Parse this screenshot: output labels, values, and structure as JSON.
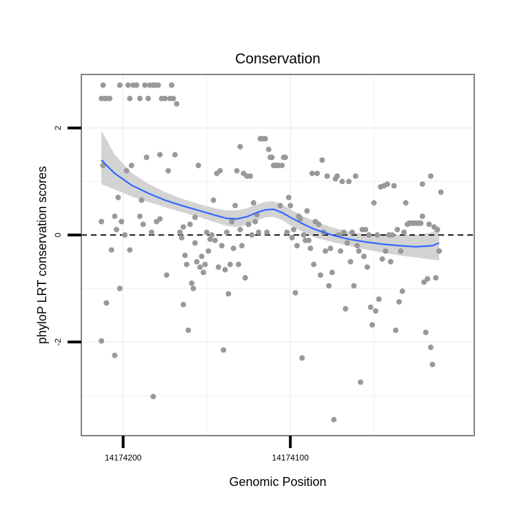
{
  "chart_data": {
    "type": "scatter",
    "title": "Conservation",
    "xlabel": "Genomic Position",
    "ylabel": "phyloP LRT conservation scores",
    "x_axis_reversed": true,
    "xlim": [
      14174225,
      14173990
    ],
    "ylim": [
      -3.75,
      3.0
    ],
    "x_ticks": [
      14174200,
      14174100
    ],
    "x_tick_labels": [
      "14174200",
      "14174100"
    ],
    "y_ticks": [
      -2,
      0,
      2
    ],
    "y_tick_labels": [
      "-2",
      "0",
      "2"
    ],
    "grid": true,
    "reference_line": {
      "y": 0,
      "style": "dashed",
      "color": "#000000"
    },
    "colors": {
      "points": "#999999",
      "smooth": "#3366FF",
      "ribbon": "#D3D3D3",
      "grid": "#F2F2F2",
      "panel_border": "#808080"
    },
    "points": [
      [
        14174212,
        2.8
      ],
      [
        14174213,
        2.55
      ],
      [
        14174212,
        1.3
      ],
      [
        14174213,
        0.25
      ],
      [
        14174213,
        -1.98
      ],
      [
        14174211,
        2.55
      ],
      [
        14174210,
        2.55
      ],
      [
        14174210,
        -1.27
      ],
      [
        14174207,
        -0.28
      ],
      [
        14174208,
        2.55
      ],
      [
        14174205,
        0.35
      ],
      [
        14174204,
        0.1
      ],
      [
        14174205,
        -2.25
      ],
      [
        14174202,
        2.8
      ],
      [
        14174203,
        0.7
      ],
      [
        14174202,
        -1.0
      ],
      [
        14174201,
        0.25
      ],
      [
        14174199,
        0.0
      ],
      [
        14174198,
        1.2
      ],
      [
        14174197,
        2.8
      ],
      [
        14174196,
        2.55
      ],
      [
        14174196,
        -0.28
      ],
      [
        14174195,
        1.3
      ],
      [
        14174194,
        2.8
      ],
      [
        14174192,
        2.8
      ],
      [
        14174190,
        2.55
      ],
      [
        14174190,
        0.35
      ],
      [
        14174189,
        0.65
      ],
      [
        14174188,
        0.2
      ],
      [
        14174187,
        2.8
      ],
      [
        14174186,
        1.45
      ],
      [
        14174185,
        2.55
      ],
      [
        14174184,
        2.8
      ],
      [
        14174183,
        0.05
      ],
      [
        14174182,
        2.8
      ],
      [
        14174182,
        -3.02
      ],
      [
        14174181,
        2.8
      ],
      [
        14174180,
        0.25
      ],
      [
        14174179,
        2.8
      ],
      [
        14174178,
        0.3
      ],
      [
        14174178,
        1.5
      ],
      [
        14174177,
        2.55
      ],
      [
        14174175,
        2.55
      ],
      [
        14174174,
        -0.75
      ],
      [
        14174173,
        1.2
      ],
      [
        14174172,
        2.55
      ],
      [
        14174171,
        2.8
      ],
      [
        14174170,
        2.55
      ],
      [
        14174169,
        1.5
      ],
      [
        14174168,
        2.45
      ],
      [
        14174166,
        0.05
      ],
      [
        14174165,
        -0.05
      ],
      [
        14174164,
        -1.3
      ],
      [
        14174164,
        0.15
      ],
      [
        14174163,
        -0.38
      ],
      [
        14174162,
        -0.55
      ],
      [
        14174161,
        -1.78
      ],
      [
        14174160,
        0.2
      ],
      [
        14174159,
        -0.9
      ],
      [
        14174158,
        -1.0
      ],
      [
        14174157,
        -0.15
      ],
      [
        14174157,
        0.33
      ],
      [
        14174156,
        -0.5
      ],
      [
        14174155,
        1.3
      ],
      [
        14174154,
        -0.6
      ],
      [
        14174153,
        -0.4
      ],
      [
        14174152,
        -0.7
      ],
      [
        14174151,
        -0.55
      ],
      [
        14174150,
        0.05
      ],
      [
        14174149,
        -0.3
      ],
      [
        14174148,
        -0.08
      ],
      [
        14174147,
        0.0
      ],
      [
        14174146,
        0.65
      ],
      [
        14174145,
        -0.1
      ],
      [
        14174144,
        1.15
      ],
      [
        14174143,
        -0.6
      ],
      [
        14174142,
        1.2
      ],
      [
        14174141,
        -0.2
      ],
      [
        14174140,
        -2.15
      ],
      [
        14174139,
        -0.65
      ],
      [
        14174138,
        0.05
      ],
      [
        14174137,
        -1.1
      ],
      [
        14174136,
        -0.55
      ],
      [
        14174135,
        0.25
      ],
      [
        14174134,
        -0.25
      ],
      [
        14174133,
        0.55
      ],
      [
        14174132,
        1.2
      ],
      [
        14174131,
        -0.55
      ],
      [
        14174130,
        0.1
      ],
      [
        14174130,
        1.65
      ],
      [
        14174129,
        -0.2
      ],
      [
        14174128,
        1.15
      ],
      [
        14174127,
        -0.8
      ],
      [
        14174126,
        1.1
      ],
      [
        14174125,
        0.2
      ],
      [
        14174124,
        1.1
      ],
      [
        14174123,
        0.0
      ],
      [
        14174122,
        0.6
      ],
      [
        14174121,
        0.25
      ],
      [
        14174120,
        0.38
      ],
      [
        14174119,
        0.05
      ],
      [
        14174118,
        1.8
      ],
      [
        14174117,
        1.8
      ],
      [
        14174116,
        1.8
      ],
      [
        14174115,
        1.8
      ],
      [
        14174114,
        0.05
      ],
      [
        14174113,
        1.6
      ],
      [
        14174112,
        1.45
      ],
      [
        14174111,
        1.45
      ],
      [
        14174110,
        1.3
      ],
      [
        14174109,
        1.3
      ],
      [
        14174108,
        1.3
      ],
      [
        14174107,
        1.3
      ],
      [
        14174106,
        0.55
      ],
      [
        14174105,
        1.3
      ],
      [
        14174104,
        1.45
      ],
      [
        14174103,
        1.45
      ],
      [
        14174102,
        0.05
      ],
      [
        14174101,
        0.7
      ],
      [
        14174100,
        0.55
      ],
      [
        14174099,
        -0.05
      ],
      [
        14174098,
        0.1
      ],
      [
        14174097,
        -1.08
      ],
      [
        14174096,
        -0.2
      ],
      [
        14174095,
        0.35
      ],
      [
        14174094,
        0.3
      ],
      [
        14174093,
        -2.3
      ],
      [
        14174092,
        0.0
      ],
      [
        14174091,
        -0.1
      ],
      [
        14174090,
        0.45
      ],
      [
        14174089,
        -0.1
      ],
      [
        14174088,
        -0.25
      ],
      [
        14174087,
        1.15
      ],
      [
        14174086,
        -0.55
      ],
      [
        14174085,
        0.25
      ],
      [
        14174084,
        1.15
      ],
      [
        14174083,
        0.2
      ],
      [
        14174082,
        -0.75
      ],
      [
        14174081,
        1.4
      ],
      [
        14174080,
        0.05
      ],
      [
        14174079,
        -0.3
      ],
      [
        14174078,
        1.1
      ],
      [
        14174077,
        -0.95
      ],
      [
        14174076,
        -0.25
      ],
      [
        14174075,
        -0.7
      ],
      [
        14174074,
        -3.45
      ],
      [
        14174073,
        1.05
      ],
      [
        14174072,
        1.1
      ],
      [
        14174071,
        0.0
      ],
      [
        14174070,
        -0.3
      ],
      [
        14174069,
        1.0
      ],
      [
        14174068,
        0.05
      ],
      [
        14174067,
        -1.38
      ],
      [
        14174066,
        -0.15
      ],
      [
        14174065,
        1.0
      ],
      [
        14174064,
        -0.5
      ],
      [
        14174063,
        0.05
      ],
      [
        14174062,
        -0.95
      ],
      [
        14174061,
        1.1
      ],
      [
        14174060,
        -0.2
      ],
      [
        14174059,
        -0.3
      ],
      [
        14174058,
        -2.75
      ],
      [
        14174057,
        0.1
      ],
      [
        14174056,
        -0.4
      ],
      [
        14174055,
        0.1
      ],
      [
        14174054,
        -0.6
      ],
      [
        14174053,
        0.0
      ],
      [
        14174052,
        -1.35
      ],
      [
        14174051,
        -1.68
      ],
      [
        14174050,
        0.6
      ],
      [
        14174049,
        -1.42
      ],
      [
        14174048,
        0.0
      ],
      [
        14174047,
        -1.2
      ],
      [
        14174046,
        0.9
      ],
      [
        14174045,
        -0.45
      ],
      [
        14174044,
        0.92
      ],
      [
        14174043,
        -0.3
      ],
      [
        14174042,
        0.95
      ],
      [
        14174041,
        0.0
      ],
      [
        14174040,
        -0.5
      ],
      [
        14174039,
        0.0
      ],
      [
        14174038,
        0.92
      ],
      [
        14174037,
        -1.78
      ],
      [
        14174036,
        0.1
      ],
      [
        14174035,
        -1.25
      ],
      [
        14174034,
        -0.3
      ],
      [
        14174033,
        -1.05
      ],
      [
        14174032,
        0.05
      ],
      [
        14174031,
        0.6
      ],
      [
        14174030,
        0.2
      ],
      [
        14174029,
        0.22
      ],
      [
        14174028,
        0.22
      ],
      [
        14174027,
        0.22
      ],
      [
        14174026,
        0.22
      ],
      [
        14174025,
        0.22
      ],
      [
        14174024,
        0.22
      ],
      [
        14174023,
        0.22
      ],
      [
        14174022,
        0.22
      ],
      [
        14174021,
        0.95
      ],
      [
        14174021,
        0.35
      ],
      [
        14174020,
        -0.88
      ],
      [
        14174019,
        -1.82
      ],
      [
        14174018,
        -0.82
      ],
      [
        14174017,
        0.2
      ],
      [
        14174016,
        -2.1
      ],
      [
        14174016,
        1.1
      ],
      [
        14174015,
        -2.42
      ],
      [
        14174014,
        0.15
      ],
      [
        14174013,
        -0.8
      ],
      [
        14174012,
        0.1
      ],
      [
        14174011,
        -0.3
      ],
      [
        14174010,
        0.8
      ]
    ],
    "smooth": {
      "x": [
        14174213,
        14174205,
        14174195,
        14174185,
        14174175,
        14174165,
        14174155,
        14174145,
        14174138,
        14174132,
        14174126,
        14174120,
        14174115,
        14174110,
        14174105,
        14174100,
        14174092,
        14174085,
        14174075,
        14174065,
        14174055,
        14174045,
        14174035,
        14174025,
        14174015,
        14174011
      ],
      "y": [
        1.4,
        1.15,
        0.93,
        0.78,
        0.65,
        0.55,
        0.46,
        0.37,
        0.31,
        0.3,
        0.34,
        0.42,
        0.47,
        0.48,
        0.42,
        0.33,
        0.2,
        0.1,
        0.0,
        -0.08,
        -0.13,
        -0.17,
        -0.2,
        -0.22,
        -0.2,
        -0.15
      ],
      "lower": [
        0.95,
        0.85,
        0.72,
        0.62,
        0.52,
        0.43,
        0.34,
        0.24,
        0.17,
        0.15,
        0.19,
        0.27,
        0.33,
        0.34,
        0.28,
        0.18,
        0.05,
        -0.05,
        -0.13,
        -0.2,
        -0.27,
        -0.33,
        -0.38,
        -0.42,
        -0.46,
        -0.48
      ],
      "upper": [
        1.95,
        1.5,
        1.16,
        0.96,
        0.8,
        0.68,
        0.58,
        0.5,
        0.46,
        0.46,
        0.5,
        0.57,
        0.62,
        0.63,
        0.57,
        0.48,
        0.35,
        0.25,
        0.14,
        0.06,
        0.01,
        0.0,
        0.0,
        0.0,
        0.05,
        0.18
      ]
    }
  }
}
